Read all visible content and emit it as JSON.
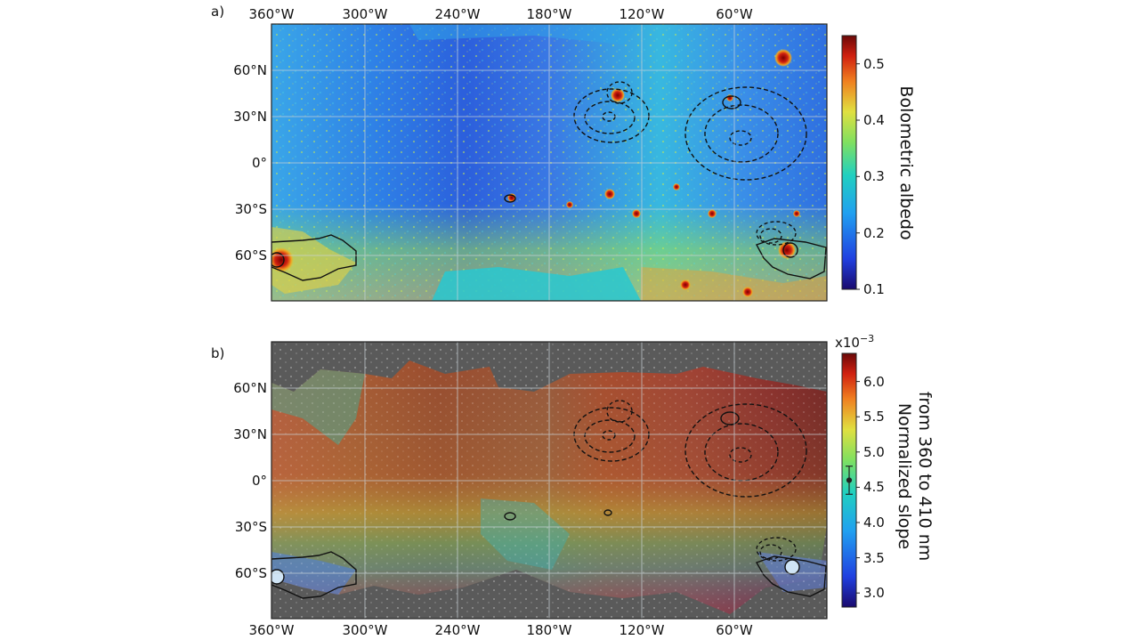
{
  "figure": {
    "panels": [
      {
        "label": "a)",
        "colorbar": {
          "title": "Bolometric albedo",
          "ticks": [
            "0.1",
            "0.2",
            "0.3",
            "0.4",
            "0.5"
          ],
          "range": [
            0.1,
            0.55
          ],
          "colormap": "jet"
        }
      },
      {
        "label": "b)",
        "colorbar": {
          "title_lines": [
            "Normalized slope",
            "from 360 to 410 nm"
          ],
          "exponent_label": "x10",
          "exponent_sup": "−3",
          "ticks": [
            "3.0",
            "3.5",
            "4.0",
            "4.5",
            "5.0",
            "5.5",
            "6.0"
          ],
          "range": [
            2.8,
            6.4
          ],
          "colormap": "jet",
          "error_marker": {
            "value": 4.6,
            "low": 4.2,
            "high": 5.0
          }
        }
      }
    ]
  },
  "chart_data": [
    {
      "type": "heatmap",
      "title": "",
      "panel": "a)",
      "xlabel": "",
      "ylabel": "",
      "x_ticks": [
        "360°W",
        "300°W",
        "240°W",
        "180°W",
        "120°W",
        "60°W"
      ],
      "y_ticks": [
        "60°N",
        "30°N",
        "0°",
        "30°S",
        "60°S"
      ],
      "xlim": [
        360,
        0
      ],
      "ylim": [
        -90,
        90
      ],
      "grid": true,
      "colorbar_label": "Bolometric albedo",
      "colorbar_range": [
        0.1,
        0.55
      ],
      "dark_spots_lon_lat": [
        [
          135,
          42
        ],
        [
          140,
          28
        ],
        [
          140,
          -22
        ],
        [
          210,
          -24
        ],
        [
          60,
          36
        ],
        [
          25,
          -57
        ],
        [
          345,
          -64
        ]
      ],
      "contour_centers_lon_lat": [
        [
          140,
          30
        ],
        [
          60,
          15
        ],
        [
          35,
          -48
        ]
      ]
    },
    {
      "type": "heatmap",
      "title": "",
      "panel": "b)",
      "xlabel": "",
      "ylabel": "",
      "x_ticks": [
        "360°W",
        "300°W",
        "240°W",
        "180°W",
        "120°W",
        "60°W"
      ],
      "y_ticks": [
        "60°N",
        "30°N",
        "0°",
        "30°S",
        "60°S"
      ],
      "xlim": [
        360,
        0
      ],
      "ylim": [
        -90,
        90
      ],
      "grid": true,
      "colorbar_label": "Normalized slope from 360 to 410 nm",
      "colorbar_range": [
        2.8,
        6.4
      ],
      "colorbar_scale": "x10^-3",
      "error_bar": {
        "value": 4.6,
        "low": 4.2,
        "high": 5.0
      },
      "contour_centers_lon_lat": [
        [
          140,
          30
        ],
        [
          60,
          15
        ],
        [
          35,
          -48
        ]
      ]
    }
  ]
}
